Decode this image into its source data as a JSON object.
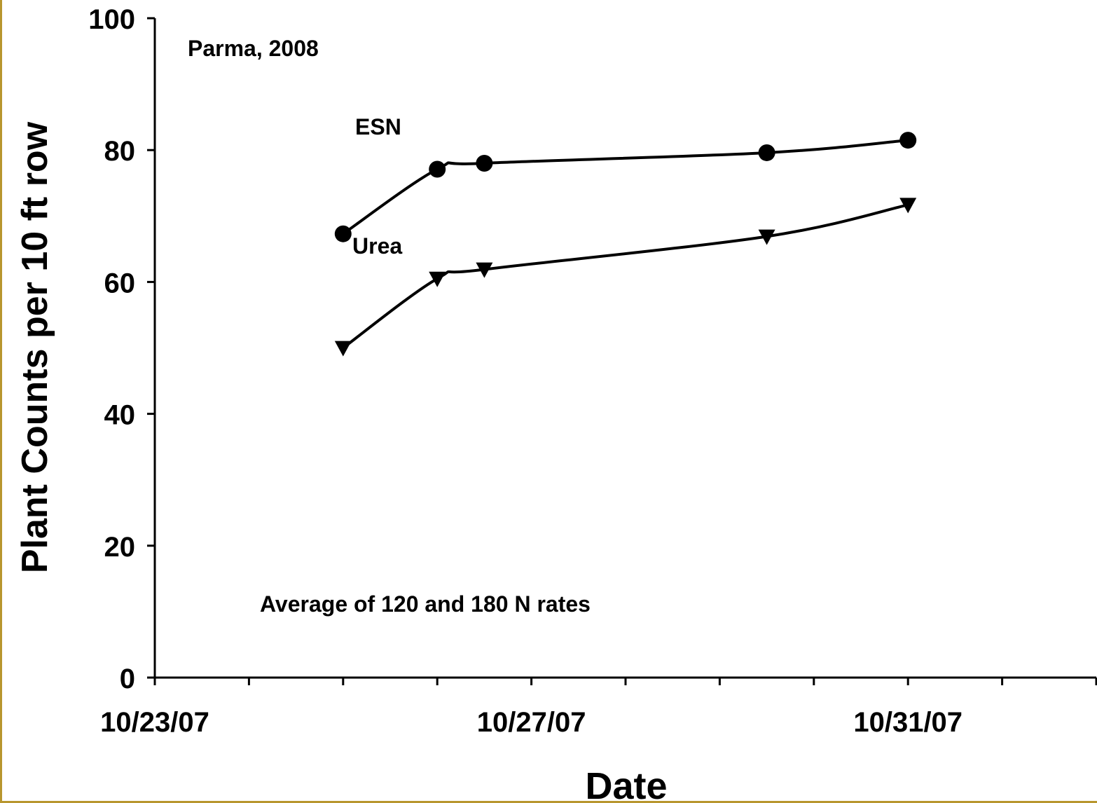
{
  "chart_data": {
    "type": "line",
    "title": "",
    "xlabel": "Date",
    "ylabel": "Plant Counts per 10 ft row",
    "xlim": [
      "10/23/07",
      "11/02/07"
    ],
    "ylim": [
      0,
      100
    ],
    "yticks": [
      0,
      20,
      40,
      60,
      80,
      100
    ],
    "xtick_labels": [
      "10/23/07",
      "10/27/07",
      "10/31/07"
    ],
    "x": [
      "10/25/07",
      "10/26/07",
      "10/26/07 12:00",
      "10/29/07 12:00",
      "10/31/07"
    ],
    "series": [
      {
        "name": "ESN",
        "marker": "circle",
        "values": [
          67.3,
          77.1,
          78.0,
          79.6,
          81.5
        ]
      },
      {
        "name": "Urea",
        "marker": "triangle-down",
        "values": [
          50.0,
          60.5,
          61.9,
          66.9,
          71.7
        ]
      }
    ],
    "annotations": [
      "Parma, 2008",
      "Average of 120 and 180 N rates"
    ],
    "grid": false,
    "legend": "none",
    "line_color": "#000000"
  }
}
